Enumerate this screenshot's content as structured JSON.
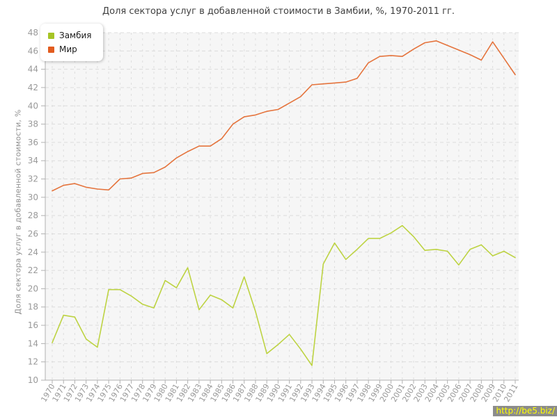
{
  "title": "Доля сектора услуг в добавленной стоимости в Замбии, %, 1970-2011 гг.",
  "watermark": "http://be5.biz/",
  "legend": {
    "items": [
      "Замбия",
      "Мир"
    ]
  },
  "chart_data": {
    "type": "line",
    "title": "Доля сектора услуг в добавленной стоимости в Замбии, %, 1970-2011 гг.",
    "xlabel": "",
    "ylabel": "Доля сектора услуг в добавленной стоимости, %",
    "ylim": [
      10,
      48
    ],
    "ytick_step": 2,
    "grid": true,
    "legend_position": "top-left",
    "x": [
      1970,
      1971,
      1972,
      1973,
      1974,
      1975,
      1976,
      1977,
      1978,
      1979,
      1980,
      1981,
      1982,
      1983,
      1984,
      1985,
      1986,
      1987,
      1988,
      1989,
      1990,
      1991,
      1992,
      1993,
      1994,
      1995,
      1996,
      1997,
      1998,
      1999,
      2000,
      2001,
      2002,
      2003,
      2004,
      2005,
      2006,
      2007,
      2008,
      2009,
      2010,
      2011
    ],
    "series": [
      {
        "name": "Замбия",
        "color": "#bdd342",
        "swatch": "#a6c425",
        "values": [
          14.1,
          17.1,
          16.9,
          14.5,
          13.6,
          19.9,
          19.9,
          19.2,
          18.3,
          17.9,
          20.9,
          20.1,
          22.3,
          17.7,
          19.3,
          18.8,
          17.9,
          21.3,
          17.5,
          12.9,
          13.9,
          15.0,
          13.4,
          11.6,
          22.7,
          25.0,
          23.2,
          24.3,
          25.5,
          25.5,
          26.1,
          26.9,
          25.7,
          24.2,
          24.3,
          24.1,
          22.6,
          24.3,
          24.8,
          23.6,
          24.1,
          23.4
        ]
      },
      {
        "name": "Мир",
        "color": "#e5743d",
        "swatch": "#e25c1f",
        "values": [
          30.7,
          31.3,
          31.5,
          31.1,
          30.9,
          30.8,
          32.0,
          32.1,
          32.6,
          32.7,
          33.3,
          34.3,
          35.0,
          35.6,
          35.6,
          36.4,
          38.0,
          38.8,
          39.0,
          39.4,
          39.6,
          40.3,
          41.0,
          42.3,
          42.4,
          42.5,
          42.6,
          43.0,
          44.7,
          45.4,
          45.5,
          45.4,
          46.2,
          46.9,
          47.1,
          46.6,
          46.1,
          45.6,
          45.0,
          47.0,
          45.2,
          43.4
        ]
      }
    ]
  }
}
